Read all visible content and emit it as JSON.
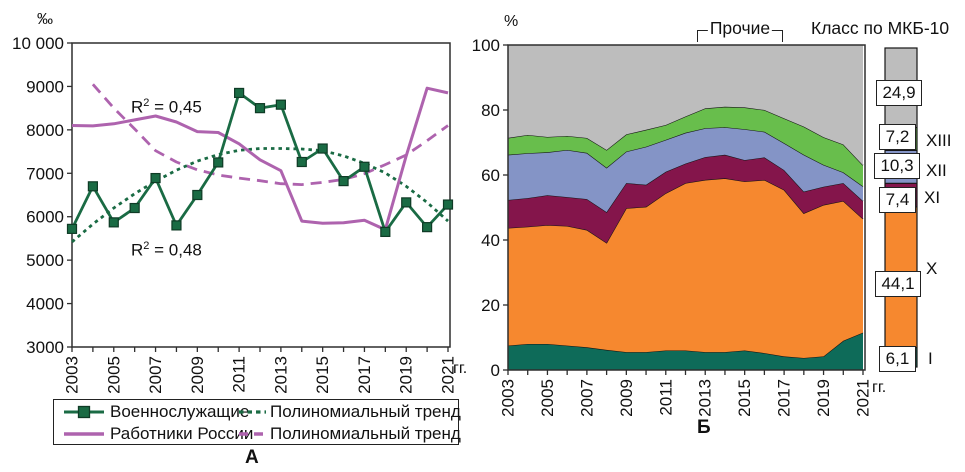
{
  "panels": {
    "a_label": "А",
    "b_label": "Б"
  },
  "chart_data": [
    {
      "id": "chartA",
      "type": "line",
      "unit_label": "‰",
      "x_unit_label": "гг.",
      "ylim": [
        3000,
        10000
      ],
      "ytick_values": [
        10000,
        9000,
        8000,
        7000,
        6000,
        5000,
        4000,
        3000
      ],
      "ytick_labels": [
        "10 000",
        "9000",
        "8000",
        "7000",
        "6000",
        "5000",
        "4000",
        "3000"
      ],
      "years": [
        2003,
        2004,
        2005,
        2006,
        2007,
        2008,
        2009,
        2010,
        2011,
        2012,
        2013,
        2014,
        2015,
        2016,
        2017,
        2018,
        2019,
        2020,
        2021
      ],
      "xtick_label_years": [
        2003,
        2005,
        2007,
        2009,
        2011,
        2013,
        2015,
        2017,
        2019,
        2021
      ],
      "annotations": [
        {
          "base": "R",
          "sup": "2",
          "rest": " = 0,45"
        },
        {
          "base": "R",
          "sup": "2",
          "rest": " = 0,48"
        }
      ],
      "series": [
        {
          "name": "Военнослужащие",
          "style": "solid-marker",
          "color": "#1A6B44",
          "values": [
            5720,
            6700,
            5870,
            6200,
            6890,
            5800,
            6500,
            7250,
            8850,
            8500,
            8580,
            7260,
            7570,
            6820,
            7150,
            5650,
            6330,
            5760,
            6280
          ]
        },
        {
          "name": "Работники России",
          "style": "solid",
          "color": "#AE63AE",
          "values": [
            8100,
            8090,
            8140,
            8230,
            8320,
            8180,
            7960,
            7940,
            7680,
            7310,
            7060,
            5900,
            5850,
            5860,
            5920,
            5700,
            7400,
            8960,
            8850
          ]
        },
        {
          "name": "Полиномиальный тренд",
          "style": "dotted",
          "color": "#1A6B44",
          "values": [
            5420,
            5830,
            6200,
            6530,
            6820,
            7070,
            7280,
            7430,
            7530,
            7570,
            7570,
            7560,
            7520,
            7400,
            7230,
            7010,
            6700,
            6330,
            5900
          ]
        },
        {
          "name": "Полиномиальный тренд",
          "style": "dashed",
          "color": "#AE63AE",
          "values": [
            null,
            9050,
            8500,
            8020,
            7520,
            7260,
            7080,
            6960,
            6890,
            6830,
            6760,
            6740,
            6790,
            6860,
            6990,
            7200,
            7420,
            7750,
            8100
          ]
        }
      ],
      "legend": {
        "items": [
          {
            "label": "Военнослужащие",
            "swatch": "green-marker-line"
          },
          {
            "label": "Полиномиальный тренд",
            "swatch": "green-dotted-line"
          },
          {
            "label": "Работники России",
            "swatch": "purple-solid-line"
          },
          {
            "label": "Полиномиальный тренд",
            "swatch": "purple-dashed-line"
          }
        ]
      }
    },
    {
      "id": "chartB",
      "type": "area",
      "unit_label": "%",
      "x_unit_label": "гг.",
      "ylim": [
        0,
        100
      ],
      "ytick_values": [
        0,
        20,
        40,
        60,
        80,
        100
      ],
      "years": [
        2003,
        2004,
        2005,
        2006,
        2007,
        2008,
        2009,
        2010,
        2011,
        2012,
        2013,
        2014,
        2015,
        2016,
        2017,
        2018,
        2019,
        2020,
        2021
      ],
      "xtick_label_years": [
        2003,
        2005,
        2007,
        2009,
        2011,
        2013,
        2015,
        2017,
        2019,
        2021
      ],
      "bracket_label": "Прочие",
      "right_axis_title": "Класс по МКБ-10",
      "series": [
        {
          "name": "I",
          "color": "#0E6B59",
          "values": [
            7.5,
            8.0,
            8.0,
            7.5,
            7.0,
            6.2,
            5.5,
            5.5,
            6.0,
            6.0,
            5.5,
            5.5,
            6.0,
            5.2,
            4.2,
            3.7,
            4.2,
            9.0,
            11.5
          ]
        },
        {
          "name": "X",
          "color": "#F6882F",
          "values": [
            36.2,
            36.1,
            36.6,
            36.8,
            36.1,
            32.9,
            44.3,
            44.7,
            48.4,
            51.5,
            53.0,
            53.5,
            52.0,
            53.3,
            51.2,
            44.5,
            46.6,
            43.0,
            35.0
          ]
        },
        {
          "name": "XI",
          "color": "#84154B",
          "values": [
            8.6,
            8.8,
            9.2,
            8.9,
            9.5,
            9.5,
            7.7,
            6.8,
            6.6,
            6.0,
            7.0,
            7.2,
            6.6,
            6.9,
            6.1,
            6.7,
            5.6,
            5.5,
            5.5
          ]
        },
        {
          "name": "XII",
          "color": "#8494C6",
          "values": [
            13.9,
            13.8,
            13.2,
            14.5,
            14.2,
            13.6,
            9.7,
            11.7,
            9.8,
            9.5,
            8.9,
            8.5,
            9.5,
            7.9,
            8.3,
            11.3,
            6.7,
            3.3,
            4.5
          ]
        },
        {
          "name": "XIII",
          "color": "#68BE4C",
          "values": [
            5.2,
            5.6,
            4.7,
            4.3,
            4.6,
            5.5,
            5.3,
            5.2,
            4.6,
            5.0,
            6.1,
            6.3,
            6.7,
            6.7,
            7.6,
            8.7,
            8.5,
            8.6,
            6.5
          ]
        },
        {
          "name": "Прочие",
          "color": "#BDBDBD",
          "values": [
            28.6,
            27.7,
            28.3,
            28.0,
            28.6,
            32.3,
            27.5,
            26.1,
            24.6,
            22.0,
            19.5,
            19.0,
            19.2,
            20.0,
            22.6,
            25.1,
            28.4,
            30.6,
            37.0
          ]
        }
      ],
      "summary_bar": {
        "segments": [
          {
            "class": "I",
            "value": 6.1,
            "label": "6,1"
          },
          {
            "class": "X",
            "value": 44.1,
            "label": "44,1"
          },
          {
            "class": "XI",
            "value": 7.4,
            "label": "7,4"
          },
          {
            "class": "XII",
            "value": 10.3,
            "label": "10,3"
          },
          {
            "class": "XIII",
            "value": 7.2,
            "label": "7,2"
          },
          {
            "class": "Прочие",
            "value": 24.9,
            "label": "24,9"
          }
        ]
      }
    }
  ],
  "colors": {
    "frame": "#2e2e2e",
    "boundary": "#141414",
    "marker_edge": "#0F3B26",
    "text": "#111111"
  }
}
